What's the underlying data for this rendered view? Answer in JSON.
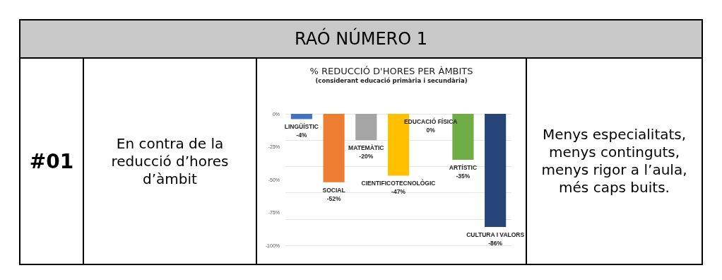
{
  "chart_data": {
    "type": "bar",
    "title": "% REDUCCIÓ D'HORES PER ÀMBITS",
    "subtitle": "(considerant educació primària i secundària)",
    "categories": [
      "LINGÜÍSTIC",
      "SOCIAL",
      "MATEMÀTIC",
      "CIENTIFICOTECNOLÒGIC",
      "EDUCACIÓ FÍSICA",
      "ARTÍSTIC",
      "CULTURA I VALORS"
    ],
    "values": [
      -4,
      -52,
      -20,
      -47,
      0,
      -35,
      -86
    ],
    "value_labels": [
      "-4%",
      "-52%",
      "-20%",
      "-47%",
      "0%",
      "-35%",
      "-86%"
    ],
    "colors": [
      "#4472c4",
      "#ed7d31",
      "#a5a5a5",
      "#ffc000",
      "#5b9bd5",
      "#70ad47",
      "#264478"
    ],
    "ylim": [
      -100,
      0
    ],
    "yticks": [
      {
        "value": -100,
        "label": "-100%"
      },
      {
        "value": -75,
        "label": "-75%"
      },
      {
        "value": -50,
        "label": "-50%"
      },
      {
        "value": -25,
        "label": "-25%"
      },
      {
        "value": 0,
        "label": "0%"
      }
    ],
    "grid": "y",
    "tick_labels": "y",
    "annotations": [
      "RAÓ NÚMERO 1",
      "#01",
      "En contra de la reducció d’hores d’àmbit",
      "Menys especialitats, menys continguts, menys rigor a l’aula, més caps buits."
    ]
  }
}
